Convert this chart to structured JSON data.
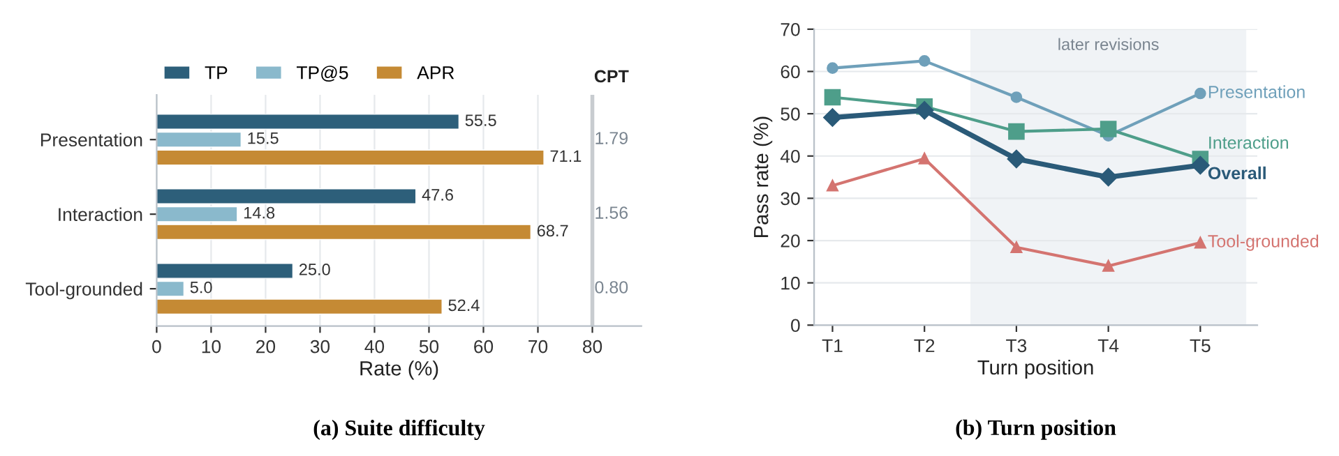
{
  "chart_data": [
    {
      "type": "bar",
      "orientation": "horizontal",
      "title": "(a) Suite difficulty",
      "xlabel": "Rate (%)",
      "categories": [
        "Presentation",
        "Interaction",
        "Tool-grounded"
      ],
      "series": [
        {
          "name": "TP",
          "color": "#2d5f7a",
          "values": [
            55.5,
            47.6,
            25.0
          ],
          "value_labels": [
            "55.5",
            "47.6",
            "25.0"
          ]
        },
        {
          "name": "TP@5",
          "color": "#8ab9cc",
          "values": [
            15.5,
            14.8,
            5.0
          ],
          "value_labels": [
            "15.5",
            "14.8",
            "5.0"
          ]
        },
        {
          "name": "APR",
          "color": "#c58a34",
          "values": [
            71.1,
            68.7,
            52.4
          ],
          "value_labels": [
            "71.1",
            "68.7",
            "52.4"
          ]
        }
      ],
      "xlim": [
        0,
        89
      ],
      "xticks": [
        0,
        10,
        20,
        30,
        40,
        50,
        60,
        70,
        80
      ],
      "ref_lines": [
        {
          "axis": "x",
          "value": 80,
          "label": null,
          "color": "#c8ccd0"
        }
      ],
      "annotations": [
        "CPT",
        "1.79",
        "1.56",
        "0.80"
      ],
      "grid": "x",
      "legend": "top left"
    },
    {
      "type": "line",
      "title": "(b) Turn position",
      "xlabel": "Turn position",
      "ylabel": "Pass rate (%)",
      "categories": [
        "T1",
        "T2",
        "T3",
        "T4",
        "T5"
      ],
      "series": [
        {
          "name": "Presentation",
          "color": "#6fa0ba",
          "marker": "circle",
          "values": [
            60.8,
            62.5,
            53.9,
            44.8,
            54.8
          ]
        },
        {
          "name": "Interaction",
          "color": "#4e9e8a",
          "marker": "square",
          "values": [
            53.9,
            51.7,
            45.8,
            46.4,
            39.3
          ]
        },
        {
          "name": "Overall",
          "color": "#2a5a78",
          "marker": "diamond",
          "values": [
            49.1,
            50.8,
            39.3,
            35.0,
            37.8
          ]
        },
        {
          "name": "Tool-grounded",
          "color": "#d47470",
          "marker": "triangle",
          "values": [
            33.0,
            39.4,
            18.4,
            14.0,
            19.5
          ]
        }
      ],
      "ylim": [
        0,
        70
      ],
      "yticks": [
        0,
        10,
        20,
        30,
        40,
        50,
        60,
        70
      ],
      "bands": [
        {
          "axis": "x",
          "from": "T3",
          "to": "T5",
          "label": "later revisions",
          "color": "#f0f3f6"
        }
      ],
      "grid": "y"
    }
  ]
}
